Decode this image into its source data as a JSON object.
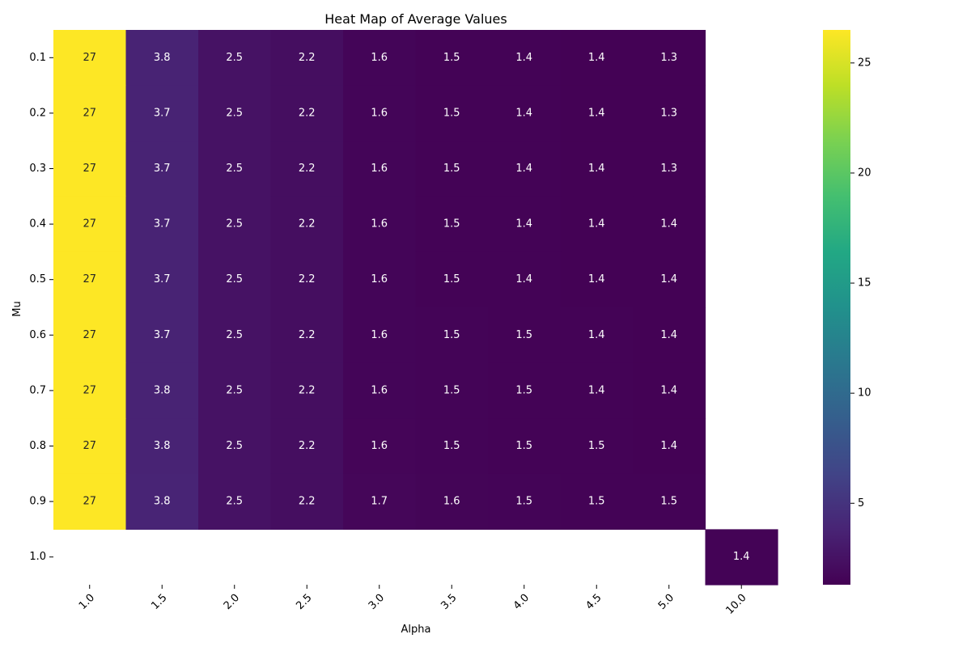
{
  "chart_data": {
    "type": "heatmap",
    "title": "Heat Map of Average Values",
    "xlabel": "Alpha",
    "ylabel": "Mu",
    "x_categories": [
      "1.0",
      "1.5",
      "2.0",
      "2.5",
      "3.0",
      "3.5",
      "4.0",
      "4.5",
      "5.0",
      "10.0"
    ],
    "y_categories": [
      "0.1",
      "0.2",
      "0.3",
      "0.4",
      "0.5",
      "0.6",
      "0.7",
      "0.8",
      "0.9",
      "1.0"
    ],
    "values": [
      [
        26.5,
        3.78,
        2.52,
        2.22,
        1.58,
        1.47,
        1.42,
        1.38,
        1.34,
        null
      ],
      [
        26.5,
        3.72,
        2.52,
        2.22,
        1.58,
        1.47,
        1.42,
        1.38,
        1.34,
        null
      ],
      [
        26.5,
        3.72,
        2.52,
        2.22,
        1.58,
        1.47,
        1.42,
        1.38,
        1.34,
        null
      ],
      [
        26.5,
        3.72,
        2.52,
        2.22,
        1.58,
        1.48,
        1.43,
        1.39,
        1.36,
        null
      ],
      [
        26.5,
        3.72,
        2.52,
        2.22,
        1.58,
        1.48,
        1.43,
        1.39,
        1.36,
        null
      ],
      [
        26.5,
        3.72,
        2.52,
        2.22,
        1.6,
        1.5,
        1.46,
        1.42,
        1.37,
        null
      ],
      [
        26.5,
        3.78,
        2.52,
        2.22,
        1.6,
        1.5,
        1.47,
        1.42,
        1.37,
        null
      ],
      [
        26.5,
        3.78,
        2.52,
        2.22,
        1.62,
        1.52,
        1.48,
        1.46,
        1.4,
        null
      ],
      [
        26.5,
        3.8,
        2.52,
        2.22,
        1.66,
        1.56,
        1.5,
        1.48,
        1.46,
        null
      ],
      [
        null,
        null,
        null,
        null,
        null,
        null,
        null,
        null,
        null,
        1.43
      ]
    ],
    "cell_labels": [
      [
        "27",
        "3.8",
        "2.5",
        "2.2",
        "1.6",
        "1.5",
        "1.4",
        "1.4",
        "1.3",
        ""
      ],
      [
        "27",
        "3.7",
        "2.5",
        "2.2",
        "1.6",
        "1.5",
        "1.4",
        "1.4",
        "1.3",
        ""
      ],
      [
        "27",
        "3.7",
        "2.5",
        "2.2",
        "1.6",
        "1.5",
        "1.4",
        "1.4",
        "1.3",
        ""
      ],
      [
        "27",
        "3.7",
        "2.5",
        "2.2",
        "1.6",
        "1.5",
        "1.4",
        "1.4",
        "1.4",
        ""
      ],
      [
        "27",
        "3.7",
        "2.5",
        "2.2",
        "1.6",
        "1.5",
        "1.4",
        "1.4",
        "1.4",
        ""
      ],
      [
        "27",
        "3.7",
        "2.5",
        "2.2",
        "1.6",
        "1.5",
        "1.5",
        "1.4",
        "1.4",
        ""
      ],
      [
        "27",
        "3.8",
        "2.5",
        "2.2",
        "1.6",
        "1.5",
        "1.5",
        "1.4",
        "1.4",
        ""
      ],
      [
        "27",
        "3.8",
        "2.5",
        "2.2",
        "1.6",
        "1.5",
        "1.5",
        "1.5",
        "1.4",
        ""
      ],
      [
        "27",
        "3.8",
        "2.5",
        "2.2",
        "1.7",
        "1.6",
        "1.5",
        "1.5",
        "1.5",
        ""
      ],
      [
        "",
        "",
        "",
        "",
        "",
        "",
        "",
        "",
        "",
        "1.4"
      ]
    ],
    "colormap": "viridis",
    "color_range": [
      1.3,
      26.5
    ],
    "colorbar_ticks": [
      5,
      10,
      15,
      20,
      25
    ],
    "grid": false,
    "x_tick_rotation": 45
  }
}
